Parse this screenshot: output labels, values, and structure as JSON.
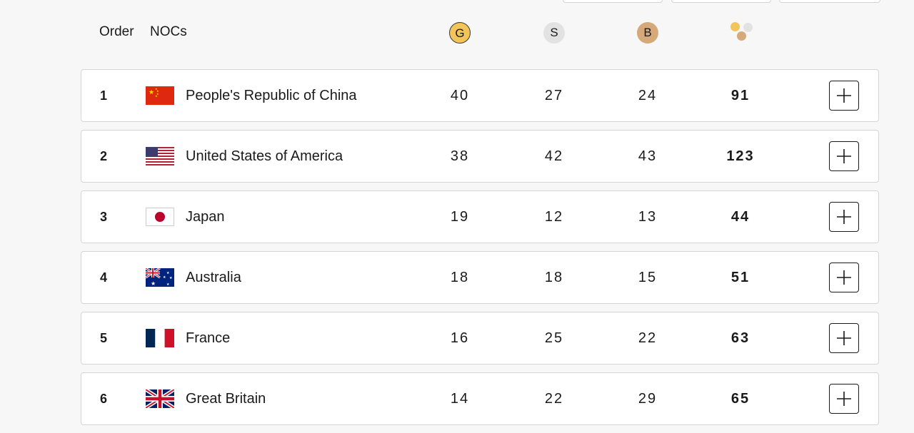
{
  "header": {
    "order_label": "Order",
    "nocs_label": "NOCs",
    "gold_label": "G",
    "silver_label": "S",
    "bronze_label": "B",
    "total_icon": "medal-total-icon"
  },
  "colors": {
    "gold": "#f2c45a",
    "silver": "#e2e2e2",
    "bronze": "#d6a97b",
    "row_border": "#d5d5d5",
    "background": "#f7f7f7"
  },
  "rows": [
    {
      "rank": "1",
      "country": "People's Republic of China",
      "flag": "china-flag",
      "gold": "40",
      "silver": "27",
      "bronze": "24",
      "total": "91",
      "expand_icon": "plus-icon"
    },
    {
      "rank": "2",
      "country": "United States of America",
      "flag": "usa-flag",
      "gold": "38",
      "silver": "42",
      "bronze": "43",
      "total": "123",
      "expand_icon": "plus-icon"
    },
    {
      "rank": "3",
      "country": "Japan",
      "flag": "japan-flag",
      "gold": "19",
      "silver": "12",
      "bronze": "13",
      "total": "44",
      "expand_icon": "plus-icon"
    },
    {
      "rank": "4",
      "country": "Australia",
      "flag": "australia-flag",
      "gold": "18",
      "silver": "18",
      "bronze": "15",
      "total": "51",
      "expand_icon": "plus-icon"
    },
    {
      "rank": "5",
      "country": "France",
      "flag": "france-flag",
      "gold": "16",
      "silver": "25",
      "bronze": "22",
      "total": "63",
      "expand_icon": "plus-icon"
    },
    {
      "rank": "6",
      "country": "Great Britain",
      "flag": "great-britain-flag",
      "gold": "14",
      "silver": "22",
      "bronze": "29",
      "total": "65",
      "expand_icon": "plus-icon"
    }
  ]
}
